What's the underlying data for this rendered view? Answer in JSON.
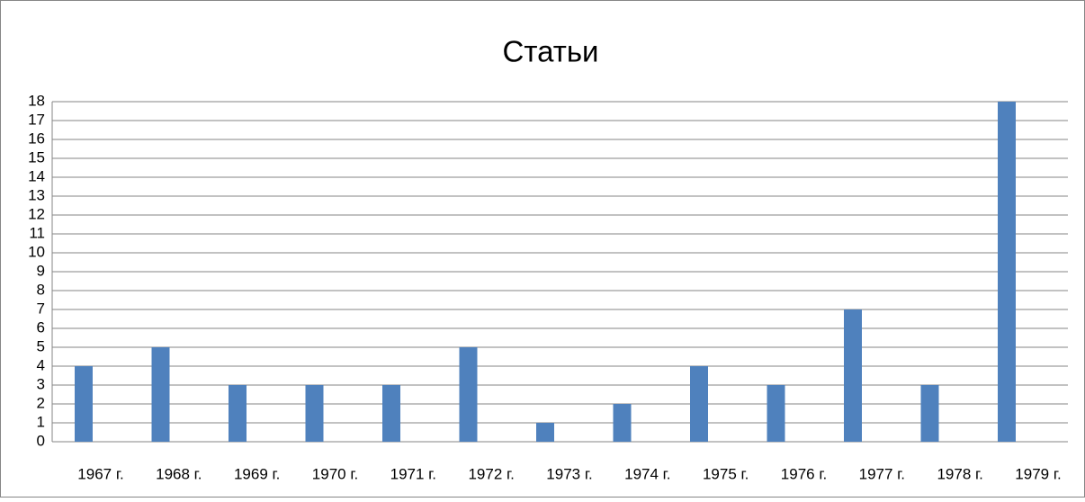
{
  "chart_data": {
    "type": "bar",
    "title": "Статьи",
    "categories": [
      "1967 г.",
      "1968 г.",
      "1969 г.",
      "1970 г.",
      "1971 г.",
      "1972 г.",
      "1973 г.",
      "1974 г.",
      "1975 г.",
      "1976 г.",
      "1977 г.",
      "1978 г.",
      "1979 г."
    ],
    "values": [
      4,
      5,
      3,
      3,
      3,
      5,
      1,
      2,
      4,
      3,
      7,
      3,
      18
    ],
    "color": "#4f81bd",
    "ylim": [
      0,
      18
    ],
    "yticks": [
      0,
      1,
      2,
      3,
      4,
      5,
      6,
      7,
      8,
      9,
      10,
      11,
      12,
      13,
      14,
      15,
      16,
      17,
      18
    ],
    "grid": true
  }
}
